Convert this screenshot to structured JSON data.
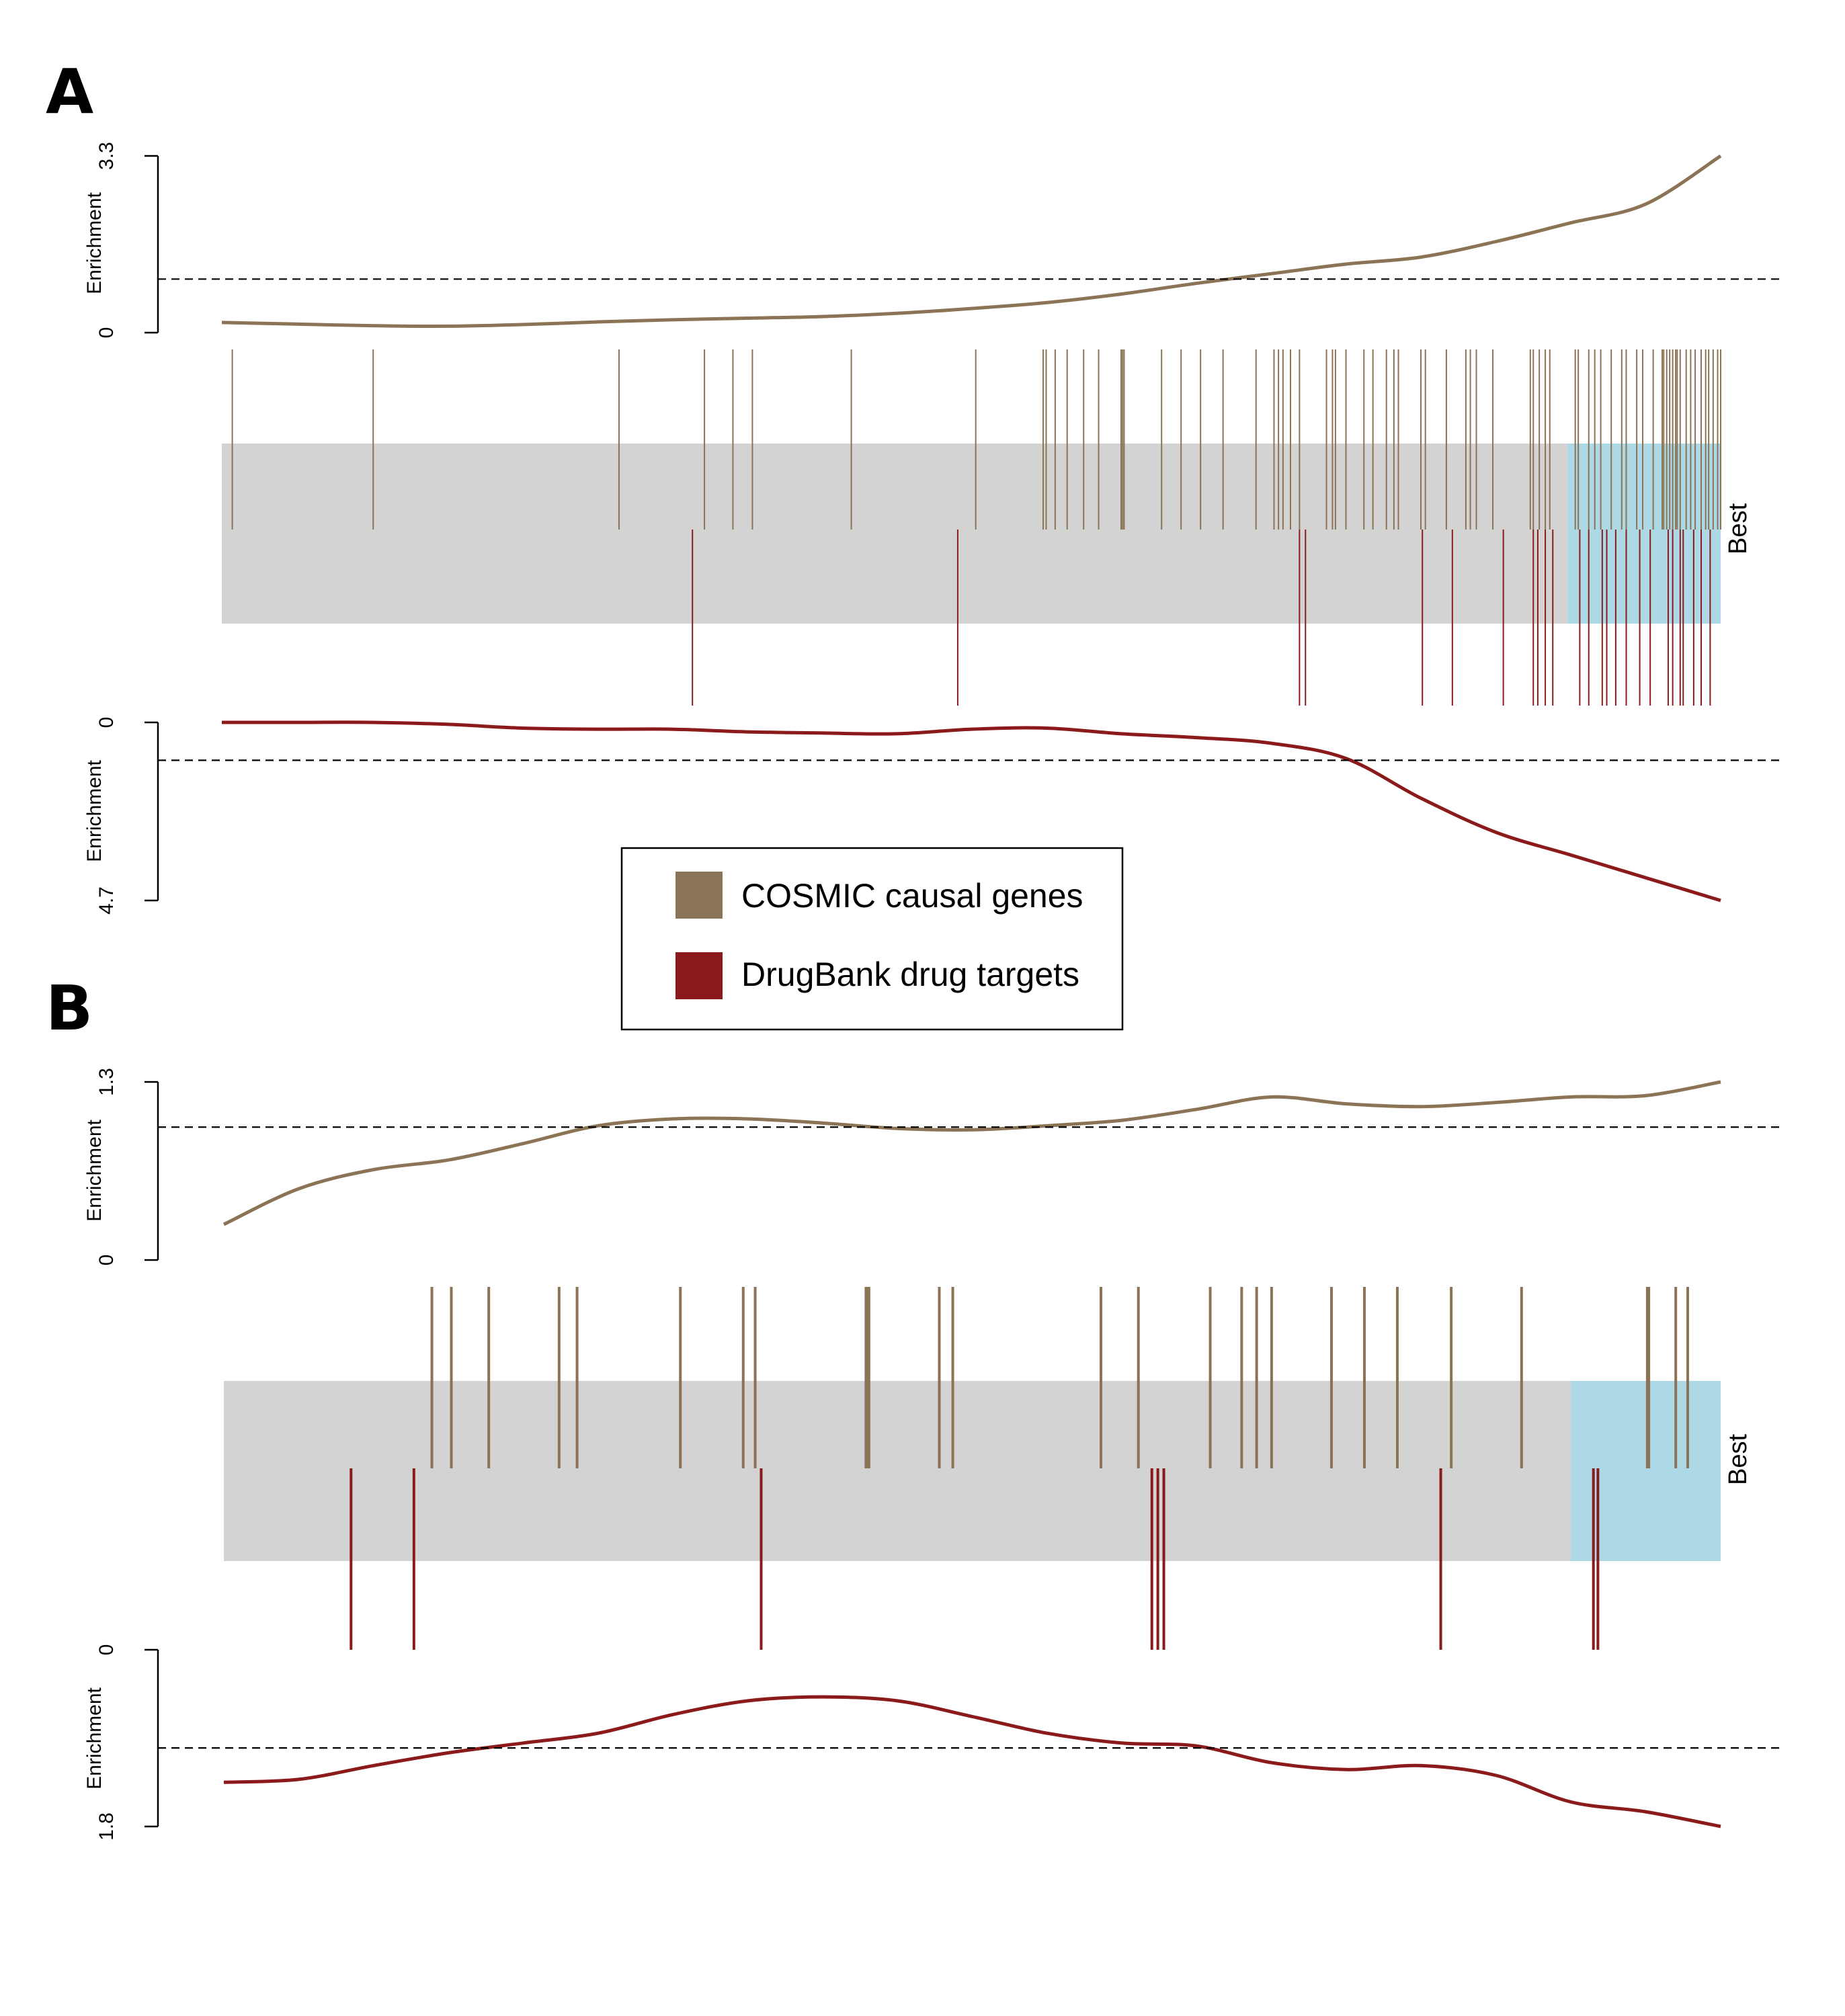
{
  "colors": {
    "cosmic": "#8B7355",
    "drugbank": "#8B1A1A",
    "background_band": "#D3D3D3",
    "best_band": "#ADD8E6"
  },
  "legend": {
    "items": [
      {
        "label": "COSMIC causal genes",
        "color": "#8B7355"
      },
      {
        "label": "DrugBank drug targets",
        "color": "#8B1A1A"
      }
    ]
  },
  "chart_data": [
    {
      "panel": "A",
      "type": "line",
      "rank_range": [
        0,
        1
      ],
      "best_band": [
        0.898,
        1.0
      ],
      "band_label": "Best",
      "top": {
        "series_name": "COSMIC causal genes",
        "ylabel": "Enrichment",
        "ylim": [
          0,
          3.3
        ],
        "tick_labels": [
          "0",
          "3.3"
        ],
        "threshold": 1.0,
        "x": [
          0,
          0.05,
          0.1,
          0.15,
          0.2,
          0.25,
          0.3,
          0.35,
          0.4,
          0.45,
          0.5,
          0.55,
          0.6,
          0.65,
          0.7,
          0.75,
          0.8,
          0.85,
          0.9,
          0.95,
          1.0
        ],
        "y": [
          0.19,
          0.16,
          0.13,
          0.12,
          0.15,
          0.2,
          0.24,
          0.27,
          0.3,
          0.36,
          0.45,
          0.56,
          0.72,
          0.92,
          1.1,
          1.28,
          1.41,
          1.7,
          2.05,
          2.4,
          3.3
        ],
        "ticks": [
          0.007,
          0.101,
          0.265,
          0.322,
          0.341,
          0.354,
          0.42,
          0.503,
          0.548,
          0.55,
          0.556,
          0.564,
          0.575,
          0.585,
          0.6,
          0.601,
          0.602,
          0.627,
          0.64,
          0.653,
          0.668,
          0.69,
          0.702,
          0.705,
          0.708,
          0.713,
          0.719,
          0.737,
          0.741,
          0.743,
          0.75,
          0.762,
          0.768,
          0.777,
          0.782,
          0.785,
          0.8,
          0.803,
          0.817,
          0.83,
          0.833,
          0.837,
          0.848,
          0.873,
          0.875,
          0.879,
          0.883,
          0.886,
          0.903,
          0.905,
          0.912,
          0.916,
          0.92,
          0.927,
          0.934,
          0.937,
          0.944,
          0.948,
          0.955,
          0.961,
          0.962,
          0.964,
          0.966,
          0.968,
          0.97,
          0.971,
          0.973,
          0.977,
          0.98,
          0.983,
          0.987,
          0.99,
          0.992,
          0.995,
          0.998,
          1.0
        ]
      },
      "bottom": {
        "series_name": "DrugBank drug targets",
        "ylabel": "Enrichment",
        "ylim": [
          0,
          4.7
        ],
        "tick_labels": [
          "0",
          "4.7"
        ],
        "threshold": 1.0,
        "x": [
          0,
          0.05,
          0.1,
          0.15,
          0.2,
          0.25,
          0.3,
          0.35,
          0.4,
          0.45,
          0.5,
          0.55,
          0.6,
          0.65,
          0.7,
          0.75,
          0.8,
          0.85,
          0.9,
          0.95,
          1.0
        ],
        "y": [
          0.0,
          0.0,
          0.0,
          0.05,
          0.15,
          0.18,
          0.18,
          0.25,
          0.28,
          0.3,
          0.18,
          0.15,
          0.3,
          0.4,
          0.55,
          0.95,
          2.0,
          2.9,
          3.5,
          4.1,
          4.7
        ],
        "ticks": [
          0.314,
          0.491,
          0.719,
          0.723,
          0.801,
          0.821,
          0.855,
          0.875,
          0.878,
          0.883,
          0.888,
          0.906,
          0.912,
          0.921,
          0.924,
          0.93,
          0.937,
          0.946,
          0.953,
          0.965,
          0.968,
          0.973,
          0.975,
          0.982,
          0.987,
          0.993
        ]
      }
    },
    {
      "panel": "B",
      "type": "line",
      "rank_range": [
        0,
        1
      ],
      "best_band": [
        0.9,
        1.0
      ],
      "band_label": "Best",
      "top": {
        "series_name": "COSMIC causal genes",
        "ylabel": "Enrichment",
        "ylim": [
          0,
          1.3
        ],
        "tick_labels": [
          "0",
          "1.3"
        ],
        "threshold": 0.97,
        "x": [
          0,
          0.05,
          0.1,
          0.15,
          0.2,
          0.25,
          0.3,
          0.35,
          0.4,
          0.45,
          0.5,
          0.55,
          0.6,
          0.65,
          0.7,
          0.75,
          0.8,
          0.85,
          0.9,
          0.95,
          1.0
        ],
        "y": [
          0.26,
          0.52,
          0.66,
          0.73,
          0.85,
          0.98,
          1.03,
          1.03,
          1.0,
          0.96,
          0.95,
          0.98,
          1.02,
          1.1,
          1.19,
          1.14,
          1.12,
          1.15,
          1.19,
          1.2,
          1.3
        ],
        "ticks": [
          0.139,
          0.152,
          0.177,
          0.224,
          0.236,
          0.305,
          0.347,
          0.355,
          0.429,
          0.43,
          0.431,
          0.478,
          0.487,
          0.586,
          0.611,
          0.659,
          0.68,
          0.69,
          0.7,
          0.74,
          0.762,
          0.784,
          0.82,
          0.867,
          0.951,
          0.952,
          0.97,
          0.978
        ]
      },
      "bottom": {
        "series_name": "DrugBank drug targets",
        "ylabel": "Enrichment",
        "ylim": [
          0,
          1.8
        ],
        "tick_labels": [
          "0",
          "1.8"
        ],
        "threshold": 1.0,
        "x": [
          0,
          0.05,
          0.1,
          0.15,
          0.2,
          0.25,
          0.3,
          0.35,
          0.4,
          0.45,
          0.5,
          0.55,
          0.6,
          0.65,
          0.7,
          0.75,
          0.8,
          0.85,
          0.9,
          0.95,
          1.0
        ],
        "y": [
          1.35,
          1.32,
          1.18,
          1.05,
          0.95,
          0.85,
          0.66,
          0.52,
          0.48,
          0.52,
          0.68,
          0.85,
          0.95,
          0.98,
          1.15,
          1.22,
          1.18,
          1.28,
          1.55,
          1.65,
          1.8
        ],
        "ticks": [
          0.085,
          0.127,
          0.359,
          0.62,
          0.624,
          0.628,
          0.813,
          0.915,
          0.918
        ]
      }
    }
  ]
}
